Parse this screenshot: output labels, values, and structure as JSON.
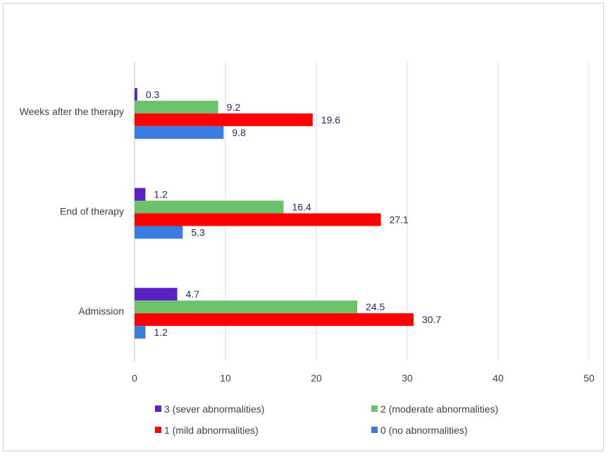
{
  "chart_data": {
    "type": "bar",
    "orientation": "horizontal",
    "categories": [
      "Admission",
      "End of therapy",
      "Weeks after the therapy"
    ],
    "series": [
      {
        "name": "0 (no abnormalities)",
        "color": "#3a7de0",
        "values": [
          1.2,
          5.3,
          9.8
        ]
      },
      {
        "name": "1 (mild abnormalities)",
        "color": "#ff0000",
        "values": [
          30.7,
          27.1,
          19.6
        ]
      },
      {
        "name": "2 (moderate abnormalities)",
        "color": "#6cc26c",
        "values": [
          24.5,
          16.4,
          9.2
        ]
      },
      {
        "name": "3 (sever abnormalities)",
        "color": "#5b21c2",
        "values": [
          4.7,
          1.2,
          0.3
        ]
      }
    ],
    "xlim": [
      0,
      50
    ],
    "xticks": [
      0,
      10,
      20,
      30,
      40,
      50
    ],
    "grid": true,
    "legend_position": "bottom",
    "legend_order": [
      "3 (sever abnormalities)",
      "2 (moderate abnormalities)",
      "1 (mild abnormalities)",
      "0 (no abnormalities)"
    ]
  }
}
